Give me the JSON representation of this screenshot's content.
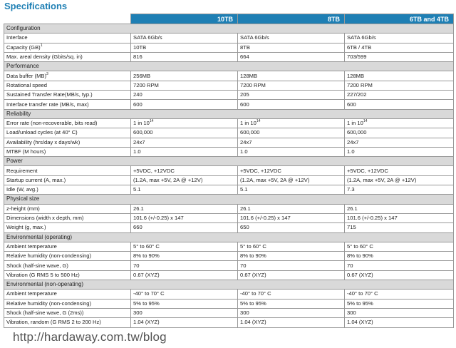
{
  "title": "Specifications",
  "columns": [
    "10TB",
    "8TB",
    "6TB and 4TB"
  ],
  "sections": [
    {
      "name": "Configuration",
      "rows": [
        {
          "label": "Interface",
          "values": [
            "SATA 6Gb/s",
            "SATA 6Gb/s",
            "SATA 6Gb/s"
          ]
        },
        {
          "label": "Capacity (GB)",
          "sup": "1",
          "values": [
            "10TB",
            "8TB",
            "6TB / 4TB"
          ]
        },
        {
          "label": "Max. areal density (Gbits/sq. in)",
          "values": [
            "816",
            "664",
            "703/599"
          ]
        }
      ]
    },
    {
      "name": "Performance",
      "rows": [
        {
          "label": "Data buffer (MB)",
          "sup": "3",
          "values": [
            "256MB",
            "128MB",
            "128MB"
          ]
        },
        {
          "label": "Rotational speed",
          "values": [
            "7200 RPM",
            "7200 RPM",
            "7200 RPM"
          ]
        },
        {
          "label": "Sustained Transfer Rate(MB/s, typ.)",
          "values": [
            "240",
            "205",
            "227/202"
          ]
        },
        {
          "label": "Interface transfer rate (MB/s, max)",
          "values": [
            "600",
            "600",
            "600"
          ]
        }
      ]
    },
    {
      "name": "Reliability",
      "rows": [
        {
          "label": "Error rate (non-recoverable, bits read)",
          "values": [
            "1 in 10",
            "1 in 10",
            "1 in 10"
          ],
          "value_sup": "14"
        },
        {
          "label": "Load/unload cycles (at 40° C)",
          "values": [
            "600,000",
            "600,000",
            "600,000"
          ]
        },
        {
          "label": "Availability (hrs/day x days/wk)",
          "values": [
            "24x7",
            "24x7",
            "24x7"
          ]
        },
        {
          "label": "MTBF (M hours)",
          "values": [
            "1.0",
            "1.0",
            "1.0"
          ]
        }
      ]
    },
    {
      "name": "Power",
      "rows": [
        {
          "label": "Requirement",
          "values": [
            "+5VDC, +12VDC",
            "+5VDC, +12VDC",
            "+5VDC, +12VDC"
          ]
        },
        {
          "label": "Startup current (A, max.)",
          "values": [
            "(1.2A, max +5V, 2A @ +12V)",
            "(1.2A, max +5V, 2A @ +12V)",
            "(1.2A, max +5V, 2A @ +12V)"
          ]
        },
        {
          "label": "Idle (W, avg.)",
          "values": [
            "5.1",
            "5.1",
            "7.3"
          ]
        }
      ]
    },
    {
      "name": "Physical size",
      "rows": [
        {
          "label": "z-height (mm)",
          "values": [
            "26.1",
            "26.1",
            "26.1"
          ]
        },
        {
          "label": "Dimensions (width x depth, mm)",
          "values": [
            "101.6 (+/-0.25) x 147",
            "101.6 (+/-0.25) x 147",
            "101.6 (+/-0.25) x 147"
          ]
        },
        {
          "label": "Weight (g, max.)",
          "values": [
            "660",
            "650",
            "715"
          ]
        }
      ]
    },
    {
      "name": "Environmental (operating)",
      "rows": [
        {
          "label": "Ambient temperature",
          "values": [
            "5° to 60° C",
            "5° to 60° C",
            "5° to 60° C"
          ]
        },
        {
          "label": "Relative humidity (non-condensing)",
          "values": [
            "8% to 90%",
            "8% to 90%",
            "8% to 90%"
          ]
        },
        {
          "label": "Shock (half-sine wave, G)",
          "values": [
            "70",
            "70",
            "70"
          ]
        },
        {
          "label": "Vibration (G RMS 5 to 500 Hz)",
          "values": [
            "0.67 (XYZ)",
            "0.67 (XYZ)",
            "0.67 (XYZ)"
          ]
        }
      ]
    },
    {
      "name": "Environmental (non-operating)",
      "rows": [
        {
          "label": "Ambient temperature",
          "values": [
            "-40° to 70° C",
            "-40° to 70° C",
            "-40° to 70° C"
          ]
        },
        {
          "label": "Relative humidity (non-condensing)",
          "values": [
            "5% to 95%",
            "5% to 95%",
            "5% to 95%"
          ]
        },
        {
          "label": "Shock (half-sine wave, G (2ms))",
          "values": [
            "300",
            "300",
            "300"
          ]
        },
        {
          "label": "Vibration, random (G RMS 2 to 200 Hz)",
          "values": [
            "1.04 (XYZ)",
            "1.04 (XYZ)",
            "1.04 (XYZ)"
          ]
        }
      ]
    }
  ],
  "watermark": "http://hardaway.com.tw/blog",
  "colors": {
    "header_bg": "#1e7fb4",
    "section_bg": "#d9d9d9",
    "title": "#1e7fb4"
  }
}
